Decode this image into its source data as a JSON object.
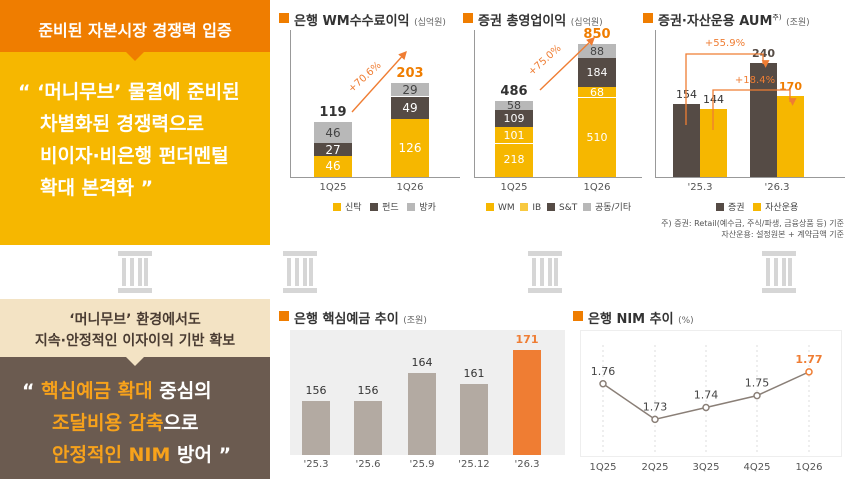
{
  "left_top": {
    "title": "준비된 자본시장 경쟁력 입증",
    "quote_lines": [
      "“ ‘머니무브’ 물결에 준비된",
      "차별화된 경쟁력으로",
      "비이자·비은행 펀더멘털",
      "확대 본격화 ”"
    ]
  },
  "left_bottom": {
    "title_lines": [
      "‘머니무브’ 환경에서도",
      "지속·안정적인 이자이익 기반 확보"
    ],
    "quote_line1_pre": "“ ",
    "quote_line1_hl": "핵심예금 확대",
    "quote_line1_post": " 중심의",
    "quote_line2_hl": "조달비용 감축",
    "quote_line2_post": "으로",
    "quote_line3_hl": "안정적인 NIM",
    "quote_line3_post": " 방어 ”"
  },
  "colors": {
    "orange": "#ef7d00",
    "yellow": "#f6b700",
    "dark": "#554b45",
    "gray": "#b8b8b8",
    "tan": "#b3aaa2",
    "accent": "#ef7d33"
  },
  "panel1": {
    "title": "은행 WM수수료이익",
    "unit": "(십억원)",
    "categories": [
      "1Q25",
      "1Q26"
    ],
    "totals": [
      "119",
      "203"
    ],
    "series": [
      {
        "name": "신탁",
        "values": [
          46,
          126
        ]
      },
      {
        "name": "펀드",
        "values": [
          27,
          49
        ]
      },
      {
        "name": "방카",
        "values": [
          46,
          29
        ]
      }
    ],
    "growth": "+70.6%"
  },
  "panel2": {
    "title": "증권 총영업이익",
    "unit": "(십억원)",
    "categories": [
      "1Q25",
      "1Q26"
    ],
    "totals": [
      "486",
      "850"
    ],
    "series": [
      {
        "name": "WM",
        "values": [
          218,
          510
        ]
      },
      {
        "name": "IB",
        "values": [
          101,
          68
        ]
      },
      {
        "name": "S&T",
        "values": [
          109,
          184
        ]
      },
      {
        "name": "공동/기타",
        "values": [
          58,
          88
        ]
      }
    ],
    "growth": "+75.0%"
  },
  "panel3": {
    "title": "증권·자산운용 AUM",
    "sup": "주)",
    "unit": "(조원)",
    "categories": [
      "'25.3",
      "'26.3"
    ],
    "series": [
      {
        "name": "증권",
        "values": [
          154,
          240
        ]
      },
      {
        "name": "자산운용",
        "values": [
          144,
          170
        ]
      }
    ],
    "growth1": "+55.9%",
    "growth2": "+18.4%",
    "footnote1": "주) 증권: Retail(예수금, 주식/파생, 금융상품 등) 기준",
    "footnote2": "자산운용: 설정원본 + 계약금액 기준"
  },
  "panel4": {
    "title": "은행 핵심예금 추이",
    "unit": "(조원)",
    "categories": [
      "'25.3",
      "'25.6",
      "'25.9",
      "'25.12",
      "'26.3"
    ],
    "values": [
      156,
      156,
      164,
      161,
      171
    ]
  },
  "panel5": {
    "title": "은행 NIM 추이",
    "unit": "(%)",
    "categories": [
      "1Q25",
      "2Q25",
      "3Q25",
      "4Q25",
      "1Q26"
    ],
    "values": [
      1.76,
      1.73,
      1.74,
      1.75,
      1.77
    ],
    "labels": [
      "1.76",
      "1.73",
      "1.74",
      "1.75",
      "1.77"
    ]
  },
  "chart_data": [
    {
      "type": "bar",
      "title": "은행 WM수수료이익 (십억원)",
      "categories": [
        "1Q25",
        "1Q26"
      ],
      "series": [
        {
          "name": "신탁",
          "values": [
            46,
            126
          ]
        },
        {
          "name": "펀드",
          "values": [
            27,
            49
          ]
        },
        {
          "name": "방카",
          "values": [
            46,
            29
          ]
        }
      ],
      "totals": [
        119,
        203
      ],
      "annotations": [
        "+70.6%"
      ]
    },
    {
      "type": "bar",
      "title": "증권 총영업이익 (십억원)",
      "categories": [
        "1Q25",
        "1Q26"
      ],
      "series": [
        {
          "name": "WM",
          "values": [
            218,
            510
          ]
        },
        {
          "name": "IB",
          "values": [
            101,
            68
          ]
        },
        {
          "name": "S&T",
          "values": [
            109,
            184
          ]
        },
        {
          "name": "공동/기타",
          "values": [
            58,
            88
          ]
        }
      ],
      "totals": [
        486,
        850
      ],
      "annotations": [
        "+75.0%"
      ]
    },
    {
      "type": "bar",
      "title": "증권·자산운용 AUM (조원)",
      "categories": [
        "'25.3",
        "'26.3"
      ],
      "series": [
        {
          "name": "증권",
          "values": [
            154,
            240
          ]
        },
        {
          "name": "자산운용",
          "values": [
            144,
            170
          ]
        }
      ],
      "annotations": [
        "+55.9%",
        "+18.4%"
      ]
    },
    {
      "type": "bar",
      "title": "은행 핵심예금 추이 (조원)",
      "categories": [
        "'25.3",
        "'25.6",
        "'25.9",
        "'25.12",
        "'26.3"
      ],
      "values": [
        156,
        156,
        164,
        161,
        171
      ]
    },
    {
      "type": "line",
      "title": "은행 NIM 추이 (%)",
      "categories": [
        "1Q25",
        "2Q25",
        "3Q25",
        "4Q25",
        "1Q26"
      ],
      "values": [
        1.76,
        1.73,
        1.74,
        1.75,
        1.77
      ]
    }
  ]
}
